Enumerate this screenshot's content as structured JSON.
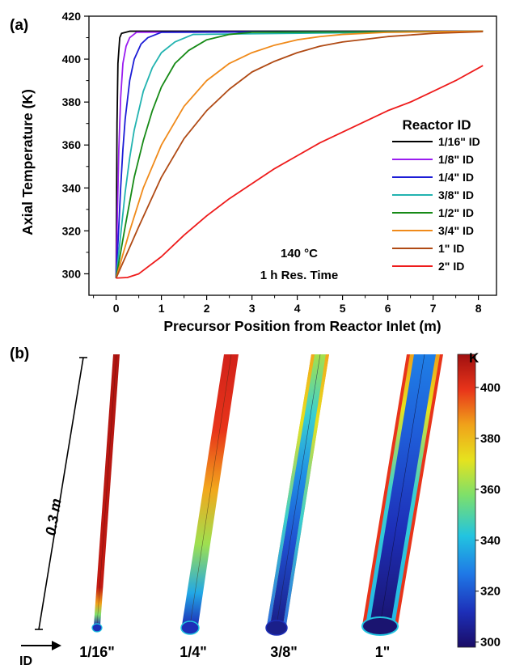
{
  "colors": {
    "1/16\" ID": "#000000",
    "1/8\" ID": "#9a1df0",
    "1/4\" ID": "#1c1cd6",
    "3/8\" ID": "#22b3b0",
    "1/2\" ID": "#168a16",
    "3/4\" ID": "#f08a1a",
    "1\" ID": "#b04a14",
    "2\" ID": "#ee1b1b"
  },
  "chart_data": [
    {
      "type": "line",
      "panel_label": "(a)",
      "xlabel": "Precursor Position from Reactor Inlet (m)",
      "ylabel": "Axial Temperature (K)",
      "xlim": [
        -0.6,
        8.4
      ],
      "ylim": [
        290,
        420
      ],
      "xticks": [
        "0",
        "1",
        "2",
        "3",
        "4",
        "5",
        "6",
        "7",
        "8"
      ],
      "yticks": [
        "300",
        "320",
        "340",
        "360",
        "380",
        "400",
        "420"
      ],
      "legend_title": "Reactor ID",
      "legend_position": "right",
      "annotation": [
        "140 °C",
        "1 h Res. Time"
      ],
      "series": [
        {
          "name": "1/16\" ID",
          "x": [
            0,
            0.02,
            0.04,
            0.08,
            0.12,
            0.3,
            8.1
          ],
          "y": [
            298,
            370,
            398,
            410,
            412,
            413,
            413
          ]
        },
        {
          "name": "1/8\" ID",
          "x": [
            0,
            0.03,
            0.06,
            0.1,
            0.15,
            0.22,
            0.3,
            0.45,
            8.1
          ],
          "y": [
            298,
            330,
            358,
            382,
            398,
            406,
            410,
            412.5,
            413
          ]
        },
        {
          "name": "1/4\" ID",
          "x": [
            0,
            0.05,
            0.1,
            0.15,
            0.2,
            0.3,
            0.4,
            0.55,
            0.7,
            1.0,
            8.1
          ],
          "y": [
            298,
            318,
            340,
            358,
            372,
            390,
            400,
            407,
            410,
            412.5,
            413
          ]
        },
        {
          "name": "3/8\" ID",
          "x": [
            0,
            0.1,
            0.2,
            0.3,
            0.4,
            0.6,
            0.8,
            1.0,
            1.3,
            1.7,
            8.1
          ],
          "y": [
            298,
            318,
            338,
            354,
            367,
            385,
            396,
            403,
            408,
            411.5,
            413
          ]
        },
        {
          "name": "1/2\" ID",
          "x": [
            0,
            0.2,
            0.4,
            0.6,
            0.8,
            1.0,
            1.3,
            1.6,
            2.0,
            2.5,
            3.0,
            8.1
          ],
          "y": [
            298,
            322,
            345,
            362,
            376,
            387,
            398,
            404,
            409,
            411.5,
            412.5,
            413
          ]
        },
        {
          "name": "3/4\" ID",
          "x": [
            0,
            0.3,
            0.6,
            1.0,
            1.5,
            2.0,
            2.5,
            3.0,
            3.5,
            4.0,
            4.5,
            5.0,
            6.0,
            8.1
          ],
          "y": [
            298,
            320,
            340,
            360,
            378,
            390,
            398,
            403,
            406.5,
            409,
            410.5,
            411.5,
            412.5,
            413
          ]
        },
        {
          "name": "1\" ID",
          "x": [
            0,
            0.5,
            1.0,
            1.5,
            2.0,
            2.5,
            3.0,
            3.5,
            4.0,
            4.5,
            5.0,
            6.0,
            7.0,
            8.1
          ],
          "y": [
            298,
            322,
            345,
            363,
            376,
            386,
            394,
            399,
            403,
            406,
            408,
            410.5,
            412,
            412.8
          ]
        },
        {
          "name": "2\" ID",
          "x": [
            0,
            0.25,
            0.5,
            1.0,
            1.5,
            2.0,
            2.5,
            3.0,
            3.5,
            4.0,
            4.5,
            5.0,
            5.5,
            6.0,
            6.5,
            7.0,
            7.5,
            8.1
          ],
          "y": [
            298,
            298.3,
            300,
            308,
            318,
            327,
            335,
            342,
            349,
            355,
            361,
            366,
            371,
            376,
            380,
            385,
            390,
            397
          ]
        }
      ]
    },
    {
      "type": "heatmap",
      "panel_label": "(b)",
      "description_labels": {
        "length": "0.3 m",
        "id_axis": "ID"
      },
      "colorbar": {
        "title": "K",
        "min": 298,
        "max": 413,
        "ticks": [
          "300",
          "320",
          "340",
          "360",
          "380",
          "400"
        ]
      },
      "tubes": [
        {
          "label": "1/16\""
        },
        {
          "label": "1/4\""
        },
        {
          "label": "3/8\""
        },
        {
          "label": "1\""
        }
      ]
    }
  ]
}
